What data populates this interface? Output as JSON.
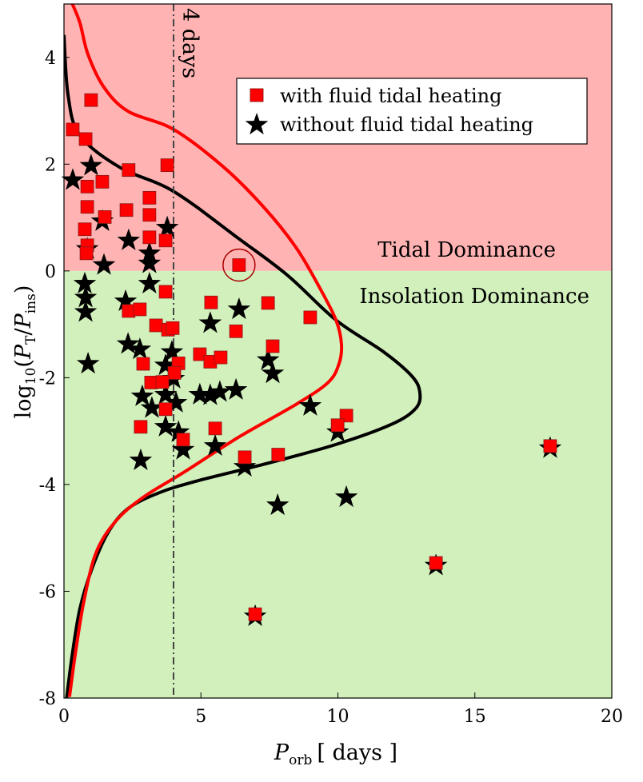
{
  "chart_data": {
    "type": "scatter",
    "xlabel": {
      "main": "P",
      "sub": "orb",
      "unit": "[ days ]"
    },
    "ylabel": {
      "fn": "log",
      "fn_sub": "10",
      "open": "(",
      "num": "P",
      "num_sub": "T",
      "slash": "/",
      "den": "P",
      "den_sub": "ins",
      "close": ")"
    },
    "xlim": [
      0,
      20
    ],
    "ylim": [
      -8,
      5
    ],
    "xticks": [
      0,
      5,
      10,
      15,
      20
    ],
    "yticks": [
      4,
      2,
      0,
      -2,
      -4,
      -6,
      -8
    ],
    "grid": false,
    "legend_placement": "top-right",
    "colors": {
      "tidal_region": "#ffb3b3",
      "insolation_region": "#d2f0bc",
      "red": "#ff0000",
      "black": "#000000",
      "ring": "#aa0000",
      "dashed": "#444444"
    },
    "regions": [
      {
        "name": "Tidal Dominance",
        "y_range": [
          0,
          5
        ]
      },
      {
        "name": "Insolation Dominance",
        "y_range": [
          -8,
          0
        ]
      }
    ],
    "vline": {
      "x": 4,
      "label": "4 days"
    },
    "highlight_ring": {
      "x": 6.39,
      "y": 0.11
    },
    "series": [
      {
        "name": "with fluid tidal heating",
        "marker": "square",
        "color": "#ff0000",
        "points": [
          [
            0.99,
            3.2
          ],
          [
            0.32,
            2.65
          ],
          [
            0.79,
            2.47
          ],
          [
            2.36,
            1.89
          ],
          [
            3.77,
            1.98
          ],
          [
            1.4,
            1.67
          ],
          [
            0.85,
            1.58
          ],
          [
            3.12,
            1.37
          ],
          [
            0.85,
            1.2
          ],
          [
            2.28,
            1.14
          ],
          [
            3.12,
            1.05
          ],
          [
            1.49,
            1.01
          ],
          [
            0.76,
            0.78
          ],
          [
            3.12,
            0.63
          ],
          [
            3.71,
            0.57
          ],
          [
            0.85,
            0.48
          ],
          [
            0.82,
            0.33
          ],
          [
            6.39,
            0.11
          ],
          [
            3.71,
            -0.39
          ],
          [
            5.37,
            -0.59
          ],
          [
            7.45,
            -0.6
          ],
          [
            2.36,
            -0.75
          ],
          [
            2.77,
            -0.72
          ],
          [
            8.99,
            -0.87
          ],
          [
            3.36,
            -1.02
          ],
          [
            3.8,
            -1.1
          ],
          [
            3.97,
            -1.07
          ],
          [
            6.28,
            -1.13
          ],
          [
            7.62,
            -1.41
          ],
          [
            4.96,
            -1.56
          ],
          [
            5.34,
            -1.7
          ],
          [
            5.72,
            -1.62
          ],
          [
            2.89,
            -1.74
          ],
          [
            4.18,
            -1.73
          ],
          [
            4.03,
            -1.91
          ],
          [
            3.18,
            -2.09
          ],
          [
            3.59,
            -2.08
          ],
          [
            3.71,
            -2.59
          ],
          [
            2.8,
            -2.92
          ],
          [
            5.52,
            -2.95
          ],
          [
            10.31,
            -2.71
          ],
          [
            9.99,
            -2.89
          ],
          [
            4.35,
            -3.16
          ],
          [
            6.6,
            -3.49
          ],
          [
            7.82,
            -3.44
          ],
          [
            17.75,
            -3.28
          ],
          [
            13.58,
            -5.47
          ],
          [
            6.98,
            -6.43
          ]
        ]
      },
      {
        "name": "without fluid tidal heating",
        "marker": "star",
        "color": "#000000",
        "points": [
          [
            0.99,
            1.97
          ],
          [
            0.32,
            1.7
          ],
          [
            1.4,
            0.93
          ],
          [
            2.36,
            0.57
          ],
          [
            3.77,
            0.81
          ],
          [
            3.12,
            0.33
          ],
          [
            3.12,
            0.14
          ],
          [
            1.46,
            0.11
          ],
          [
            0.85,
            0.41
          ],
          [
            0.76,
            -0.24
          ],
          [
            3.12,
            -0.24
          ],
          [
            0.79,
            -0.5
          ],
          [
            0.79,
            -0.77
          ],
          [
            2.25,
            -0.57
          ],
          [
            6.39,
            -0.72
          ],
          [
            5.34,
            -0.98
          ],
          [
            2.34,
            -1.37
          ],
          [
            2.77,
            -1.47
          ],
          [
            3.94,
            -1.52
          ],
          [
            0.88,
            -1.74
          ],
          [
            3.71,
            -1.77
          ],
          [
            7.45,
            -1.67
          ],
          [
            7.62,
            -1.92
          ],
          [
            4.0,
            -2.02
          ],
          [
            2.86,
            -2.35
          ],
          [
            3.71,
            -2.32
          ],
          [
            3.21,
            -2.57
          ],
          [
            4.09,
            -2.47
          ],
          [
            4.96,
            -2.32
          ],
          [
            5.34,
            -2.33
          ],
          [
            5.69,
            -2.27
          ],
          [
            6.28,
            -2.23
          ],
          [
            8.99,
            -2.53
          ],
          [
            3.71,
            -2.92
          ],
          [
            4.18,
            -3.02
          ],
          [
            4.35,
            -3.35
          ],
          [
            5.52,
            -3.28
          ],
          [
            2.8,
            -3.55
          ],
          [
            9.99,
            -3.02
          ],
          [
            6.6,
            -3.67
          ],
          [
            10.31,
            -4.24
          ],
          [
            7.8,
            -4.39
          ],
          [
            17.75,
            -3.32
          ],
          [
            13.58,
            -5.52
          ],
          [
            6.98,
            -6.47
          ]
        ]
      }
    ],
    "curves": [
      {
        "name": "black-boundary-curve",
        "color": "#000000",
        "points": [
          [
            0,
            4.42
          ],
          [
            0.15,
            3.29
          ],
          [
            0.58,
            2.54
          ],
          [
            2.04,
            1.94
          ],
          [
            4.0,
            1.49
          ],
          [
            6.42,
            0.59
          ],
          [
            8.18,
            -0.09
          ],
          [
            9.93,
            -0.92
          ],
          [
            11.68,
            -1.52
          ],
          [
            12.7,
            -1.97
          ],
          [
            12.99,
            -2.27
          ],
          [
            12.85,
            -2.57
          ],
          [
            11.97,
            -2.87
          ],
          [
            9.93,
            -3.25
          ],
          [
            7.3,
            -3.62
          ],
          [
            4.96,
            -3.92
          ],
          [
            3.5,
            -4.15
          ],
          [
            2.34,
            -4.45
          ],
          [
            1.61,
            -4.9
          ],
          [
            1.02,
            -5.58
          ],
          [
            0.58,
            -6.33
          ],
          [
            0.29,
            -7.23
          ],
          [
            0.09,
            -8.03
          ]
        ]
      },
      {
        "name": "red-boundary-curve",
        "color": "#ff0000",
        "points": [
          [
            0.29,
            5.02
          ],
          [
            0.58,
            4.65
          ],
          [
            0.88,
            4.05
          ],
          [
            1.46,
            3.44
          ],
          [
            2.34,
            2.99
          ],
          [
            4.0,
            2.65
          ],
          [
            5.84,
            1.94
          ],
          [
            7.3,
            1.19
          ],
          [
            8.47,
            0.44
          ],
          [
            9.34,
            -0.32
          ],
          [
            9.93,
            -0.92
          ],
          [
            10.13,
            -1.37
          ],
          [
            10.04,
            -1.74
          ],
          [
            9.64,
            -2.09
          ],
          [
            8.47,
            -2.5
          ],
          [
            6.42,
            -3.1
          ],
          [
            4.38,
            -3.77
          ],
          [
            2.92,
            -4.23
          ],
          [
            1.9,
            -4.68
          ],
          [
            1.17,
            -5.28
          ],
          [
            0.73,
            -6.18
          ],
          [
            0.44,
            -7.08
          ],
          [
            0.2,
            -7.98
          ]
        ]
      }
    ]
  }
}
